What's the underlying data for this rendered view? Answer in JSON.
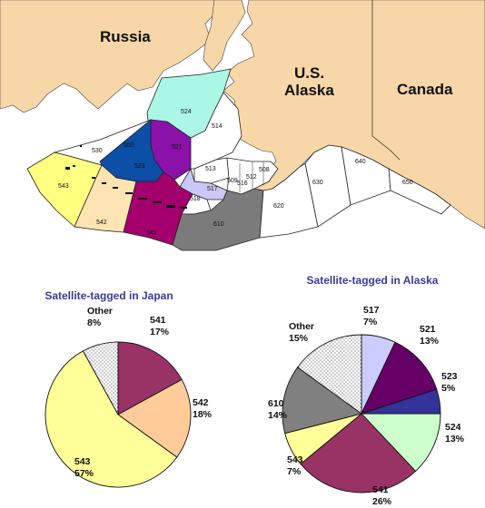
{
  "map": {
    "countries": {
      "russia": "Russia",
      "us": "U.S.",
      "alaska": "Alaska",
      "canada": "Canada"
    },
    "zones": {
      "z524": "524",
      "z514": "514",
      "z550": "550",
      "z530": "530",
      "z521": "521",
      "z523": "523",
      "z513": "513",
      "z517": "517",
      "z509": "509",
      "z516": "516",
      "z512": "512",
      "z508": "508",
      "z543": "543",
      "z542": "542",
      "z541": "541",
      "z518": "518",
      "z610": "610",
      "z620": "620",
      "z630": "630",
      "z640": "640",
      "z650": "650"
    },
    "colors": {
      "land": "#f7d7a8",
      "water": "#ffffff",
      "z524": "#aaf7e6",
      "z521": "#8a12a8",
      "z523": "#0b4fa7",
      "z517": "#c9c8f4",
      "z543": "#ffff80",
      "z542": "#fde4b2",
      "z541": "#a3006e",
      "z610": "#7b7b7b"
    }
  },
  "chart_data": [
    {
      "type": "pie",
      "title": "Satellite-tagged in Japan",
      "slices": [
        {
          "label": "541",
          "pct": "17%",
          "value": 17,
          "color": "#993366",
          "pattern": false
        },
        {
          "label": "542",
          "pct": "18%",
          "value": 18,
          "color": "#ffcc99",
          "pattern": false
        },
        {
          "label": "543",
          "pct": "57%",
          "value": 57,
          "color": "#ffff99",
          "pattern": false
        },
        {
          "label": "Other",
          "pct": "8%",
          "value": 8,
          "color": "#ffffff",
          "pattern": true
        }
      ]
    },
    {
      "type": "pie",
      "title": "Satellite-tagged in Alaska",
      "slices": [
        {
          "label": "517",
          "pct": "7%",
          "value": 7,
          "color": "#ccccff",
          "pattern": false
        },
        {
          "label": "521",
          "pct": "13%",
          "value": 13,
          "color": "#660066",
          "pattern": false
        },
        {
          "label": "523",
          "pct": "5%",
          "value": 5,
          "color": "#333399",
          "pattern": false
        },
        {
          "label": "524",
          "pct": "13%",
          "value": 13,
          "color": "#ccffcc",
          "pattern": false
        },
        {
          "label": "541",
          "pct": "26%",
          "value": 26,
          "color": "#993366",
          "pattern": false
        },
        {
          "label": "543",
          "pct": "7%",
          "value": 7,
          "color": "#ffff99",
          "pattern": false
        },
        {
          "label": "610",
          "pct": "14%",
          "value": 14,
          "color": "#808080",
          "pattern": false
        },
        {
          "label": "Other",
          "pct": "15%",
          "value": 15,
          "color": "#ffffff",
          "pattern": true
        }
      ]
    }
  ]
}
